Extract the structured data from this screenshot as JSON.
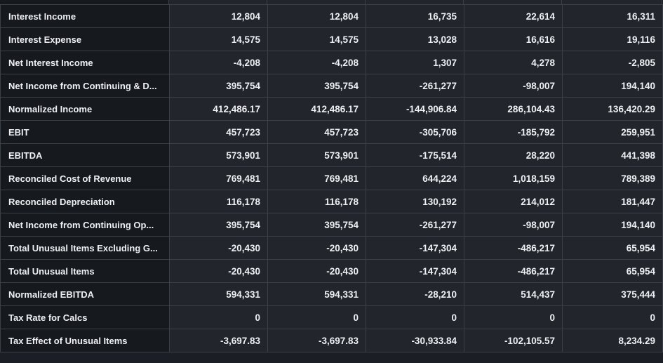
{
  "table": {
    "rows": [
      {
        "label": "Interest Income",
        "values": [
          "12,804",
          "12,804",
          "16,735",
          "22,614",
          "16,311"
        ]
      },
      {
        "label": "Interest Expense",
        "values": [
          "14,575",
          "14,575",
          "13,028",
          "16,616",
          "19,116"
        ]
      },
      {
        "label": "Net Interest Income",
        "values": [
          "-4,208",
          "-4,208",
          "1,307",
          "4,278",
          "-2,805"
        ]
      },
      {
        "label": "Net Income from Continuing & D...",
        "values": [
          "395,754",
          "395,754",
          "-261,277",
          "-98,007",
          "194,140"
        ]
      },
      {
        "label": "Normalized Income",
        "values": [
          "412,486.17",
          "412,486.17",
          "-144,906.84",
          "286,104.43",
          "136,420.29"
        ]
      },
      {
        "label": "EBIT",
        "values": [
          "457,723",
          "457,723",
          "-305,706",
          "-185,792",
          "259,951"
        ]
      },
      {
        "label": "EBITDA",
        "values": [
          "573,901",
          "573,901",
          "-175,514",
          "28,220",
          "441,398"
        ]
      },
      {
        "label": "Reconciled Cost of Revenue",
        "values": [
          "769,481",
          "769,481",
          "644,224",
          "1,018,159",
          "789,389"
        ]
      },
      {
        "label": "Reconciled Depreciation",
        "values": [
          "116,178",
          "116,178",
          "130,192",
          "214,012",
          "181,447"
        ]
      },
      {
        "label": "Net Income from Continuing Op...",
        "values": [
          "395,754",
          "395,754",
          "-261,277",
          "-98,007",
          "194,140"
        ]
      },
      {
        "label": "Total Unusual Items Excluding G...",
        "values": [
          "-20,430",
          "-20,430",
          "-147,304",
          "-486,217",
          "65,954"
        ]
      },
      {
        "label": "Total Unusual Items",
        "values": [
          "-20,430",
          "-20,430",
          "-147,304",
          "-486,217",
          "65,954"
        ]
      },
      {
        "label": "Normalized EBITDA",
        "values": [
          "594,331",
          "594,331",
          "-28,210",
          "514,437",
          "375,444"
        ]
      },
      {
        "label": "Tax Rate for Calcs",
        "values": [
          "0",
          "0",
          "0",
          "0",
          "0"
        ]
      },
      {
        "label": "Tax Effect of Unusual Items",
        "values": [
          "-3,697.83",
          "-3,697.83",
          "-30,933.84",
          "-102,105.57",
          "8,234.29"
        ]
      }
    ]
  },
  "colors": {
    "background": "#1b1e24",
    "label_cell": "#16191e",
    "value_cell": "#22262c",
    "border": "#3a3f48",
    "text": "#eef0f3"
  }
}
